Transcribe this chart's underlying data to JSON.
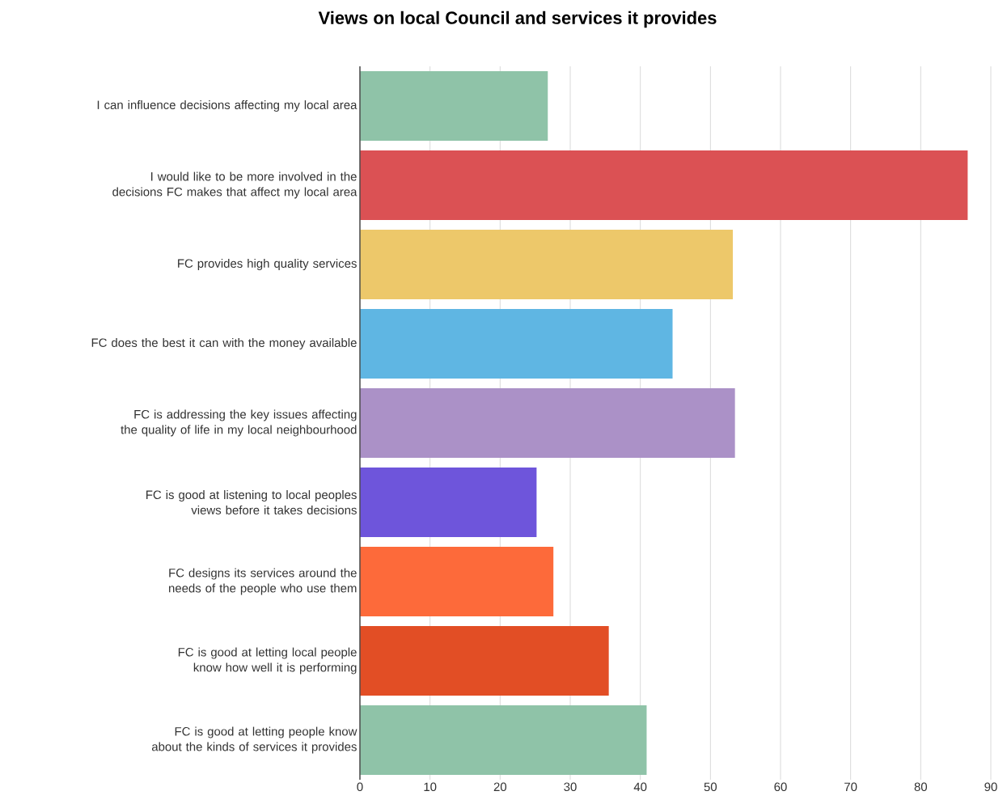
{
  "chart_data": {
    "type": "bar",
    "orientation": "horizontal",
    "title": "Views on local Council and services it provides",
    "categories": [
      "I can influence decisions affecting my local area",
      "I would like to be more involved in the decisions FC makes that affect my local area",
      "FC provides high quality services",
      "FC does the best it can with the money available",
      "FC is addressing the key issues affecting the quality of life in my local neighbourhood",
      "FC is good at listening to local peoples views before it takes decisions",
      "FC designs its services around the needs of the people who use them",
      "FC is good at letting local people know how well it is performing",
      "FC is good at letting people know about the kinds of services it provides"
    ],
    "values": [
      26.8,
      86.7,
      53.2,
      44.6,
      53.5,
      25.2,
      27.6,
      35.5,
      40.9
    ],
    "colors": [
      "#8fc3a8",
      "#db5154",
      "#edc86a",
      "#5fb6e3",
      "#ab91c7",
      "#6e55db",
      "#fd6a3a",
      "#e24e25",
      "#8fc3a8"
    ],
    "xlim": [
      0,
      90
    ],
    "xticks": [
      0,
      10,
      20,
      30,
      40,
      50,
      60,
      70,
      80,
      90
    ],
    "grid": "x"
  }
}
